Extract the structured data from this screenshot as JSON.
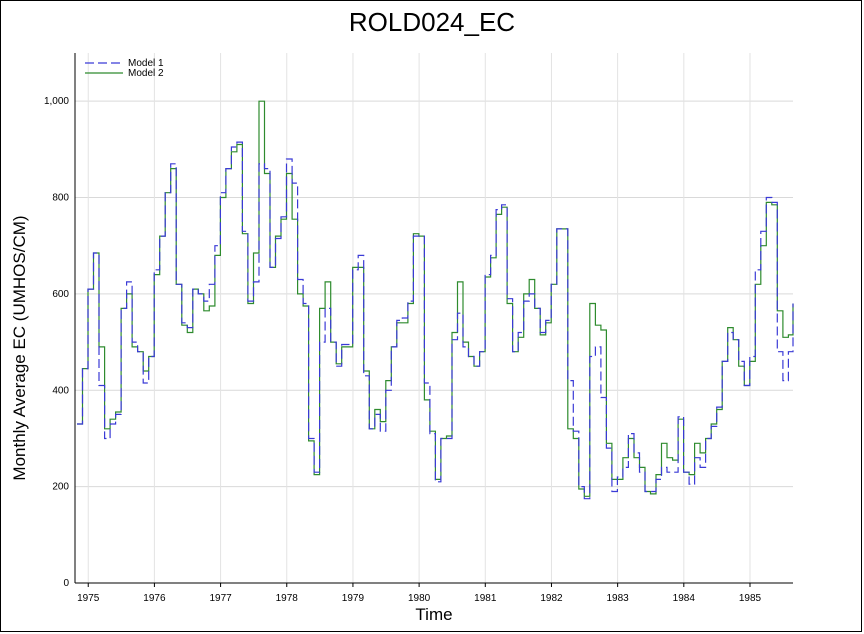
{
  "chart_data": {
    "type": "line",
    "title": "ROLD024_EC",
    "xlabel": "Time",
    "ylabel": "Monthly Average EC (UMHOS/CM)",
    "xlim": [
      1974.8,
      1985.65
    ],
    "ylim": [
      0,
      1100
    ],
    "x_ticks": [
      1975,
      1976,
      1977,
      1978,
      1979,
      1980,
      1981,
      1982,
      1983,
      1984,
      1985
    ],
    "y_ticks": [
      0,
      200,
      400,
      600,
      800,
      1000
    ],
    "y_tick_labels": [
      "0",
      "200",
      "400",
      "600",
      "800",
      "1,000"
    ],
    "grid": true,
    "legend_position": "top-left",
    "step": true,
    "x_start": 1974.83,
    "x_step": 0.0833333,
    "series": [
      {
        "name": "Model 1",
        "color": "#3a3ad6",
        "dash": "9,4",
        "values": [
          330,
          445,
          610,
          685,
          410,
          300,
          330,
          350,
          570,
          625,
          500,
          480,
          415,
          470,
          650,
          720,
          810,
          870,
          620,
          540,
          530,
          610,
          600,
          585,
          620,
          700,
          810,
          860,
          905,
          915,
          730,
          585,
          625,
          870,
          860,
          655,
          715,
          760,
          880,
          830,
          630,
          580,
          300,
          230,
          500,
          570,
          500,
          450,
          495,
          495,
          650,
          680,
          430,
          320,
          350,
          315,
          400,
          490,
          545,
          550,
          585,
          720,
          720,
          415,
          310,
          210,
          300,
          300,
          505,
          560,
          490,
          470,
          450,
          480,
          640,
          680,
          775,
          785,
          590,
          480,
          520,
          585,
          600,
          570,
          520,
          545,
          620,
          735,
          735,
          420,
          315,
          200,
          175,
          470,
          490,
          385,
          280,
          190,
          220,
          240,
          310,
          270,
          230,
          190,
          190,
          215,
          240,
          230,
          230,
          345,
          230,
          205,
          260,
          240,
          300,
          325,
          365,
          460,
          520,
          505,
          460,
          410,
          470,
          650,
          730,
          800,
          790,
          480,
          420,
          480,
          560,
          580,
          580
        ]
      },
      {
        "name": "Model 2",
        "color": "#2e8b2e",
        "dash": "",
        "values": [
          330,
          445,
          610,
          685,
          490,
          320,
          340,
          355,
          570,
          600,
          490,
          480,
          440,
          470,
          640,
          720,
          810,
          860,
          620,
          535,
          520,
          610,
          600,
          565,
          575,
          680,
          800,
          860,
          895,
          910,
          725,
          580,
          685,
          1000,
          850,
          655,
          720,
          755,
          850,
          755,
          600,
          575,
          295,
          225,
          570,
          625,
          500,
          455,
          490,
          490,
          655,
          655,
          440,
          320,
          360,
          335,
          420,
          490,
          540,
          540,
          580,
          725,
          720,
          380,
          315,
          215,
          300,
          305,
          520,
          625,
          500,
          470,
          450,
          480,
          635,
          675,
          765,
          780,
          580,
          480,
          510,
          600,
          630,
          570,
          515,
          540,
          620,
          735,
          735,
          320,
          300,
          195,
          180,
          580,
          535,
          525,
          290,
          215,
          215,
          260,
          300,
          260,
          240,
          190,
          185,
          225,
          290,
          260,
          255,
          340,
          230,
          225,
          290,
          270,
          300,
          330,
          360,
          460,
          530,
          505,
          450,
          410,
          460,
          620,
          700,
          790,
          785,
          565,
          510,
          515,
          560,
          580,
          580
        ]
      }
    ]
  }
}
